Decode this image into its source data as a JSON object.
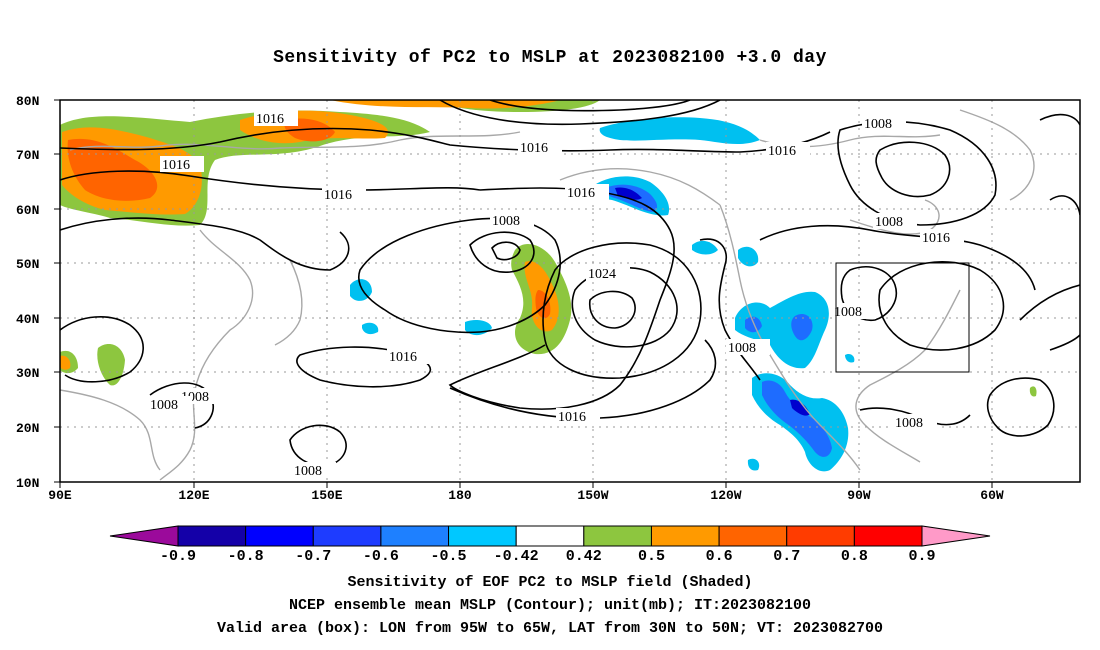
{
  "title": "Sensitivity of PC2 to MSLP at 2023082100 +3.0 day",
  "map": {
    "lat_ticks": [
      "80N",
      "70N",
      "60N",
      "50N",
      "40N",
      "30N",
      "20N",
      "10N"
    ],
    "lon_ticks": [
      "90E",
      "120E",
      "150E",
      "180",
      "150W",
      "120W",
      "90W",
      "60W"
    ],
    "gridlines": "dotted",
    "valid_box": {
      "lon_from": "95W",
      "lon_to": "65W",
      "lat_from": "30N",
      "lat_to": "50N"
    },
    "contour_labels": [
      "1016",
      "1016",
      "1016",
      "1016",
      "1016",
      "1016",
      "1016",
      "1016",
      "1008",
      "1008",
      "1008",
      "1008",
      "1008",
      "1008",
      "1008",
      "1008",
      "1008",
      "1024",
      "1016"
    ],
    "colors": {
      "green": "#8dc63f",
      "orange": "#ff9a00",
      "darkorange": "#ff6400",
      "red": "#ff3c00",
      "skyblue": "#00c0f0",
      "blue": "#1e6cff",
      "darkblue": "#0000ce",
      "coast": "#a8a8a8"
    }
  },
  "colorbar": {
    "labels": [
      "-0.9",
      "-0.8",
      "-0.7",
      "-0.6",
      "-0.5",
      "-0.42",
      "0.42",
      "0.5",
      "0.6",
      "0.7",
      "0.8",
      "0.9"
    ],
    "colors": [
      "#9b0a9b",
      "#1400a8",
      "#0000ff",
      "#1e3cff",
      "#1e80ff",
      "#00c8ff",
      "#ffffff",
      "#8dc63f",
      "#ff9a00",
      "#ff6400",
      "#ff3c00",
      "#ff0000",
      "#ff9ac8"
    ]
  },
  "captions": {
    "line1": "Sensitivity of EOF PC2 to MSLP field (Shaded)",
    "line2": "NCEP ensemble mean MSLP (Contour); unit(mb); IT:2023082100",
    "line3": "Valid area (box): LON from 95W to 65W, LAT from 30N to 50N; VT: 2023082700"
  }
}
